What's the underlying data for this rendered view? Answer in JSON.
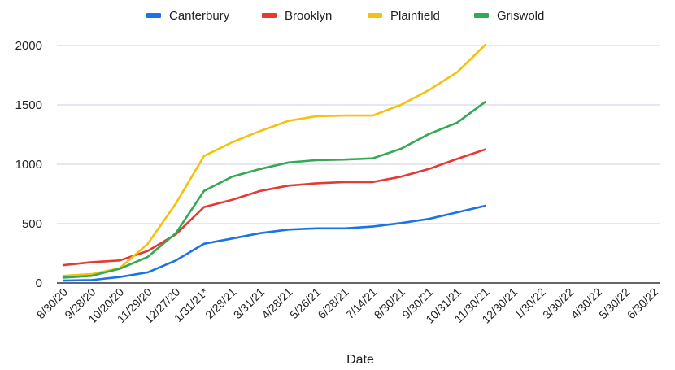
{
  "chart_data": {
    "type": "line",
    "title": "",
    "xlabel": "Date",
    "ylabel": "",
    "ylim": [
      0,
      2000
    ],
    "yticks": [
      0,
      500,
      1000,
      1500,
      2000
    ],
    "grid": true,
    "legend_position": "top",
    "categories": [
      "8/30/20",
      "9/28/20",
      "10/20/20",
      "11/29/20",
      "12/27/20",
      "1/31/21*",
      "2/28/21",
      "3/31/21",
      "4/28/21",
      "5/26/21",
      "6/28/21",
      "7/14/21",
      "8/30/21",
      "9/30/21",
      "10/31/21",
      "11/30/21",
      "12/30/21",
      "1/30/22",
      "3/30/22",
      "4/30/22",
      "5/30/22",
      "6/30/22"
    ],
    "series": [
      {
        "name": "Canterbury",
        "color": "#1a73e8",
        "values": [
          20,
          25,
          50,
          90,
          190,
          330,
          375,
          420,
          450,
          460,
          460,
          475,
          505,
          540,
          595,
          650,
          null,
          null,
          null,
          null,
          null,
          null
        ]
      },
      {
        "name": "Brooklyn",
        "color": "#e53935",
        "values": [
          150,
          175,
          190,
          270,
          410,
          640,
          700,
          775,
          820,
          840,
          850,
          850,
          895,
          960,
          1045,
          1125,
          null,
          null,
          null,
          null,
          null,
          null
        ]
      },
      {
        "name": "Plainfield",
        "color": "#f4c20d",
        "values": [
          60,
          75,
          125,
          330,
          670,
          1070,
          1185,
          1280,
          1365,
          1405,
          1410,
          1410,
          1500,
          1625,
          1775,
          2005,
          null,
          null,
          null,
          null,
          null,
          null
        ]
      },
      {
        "name": "Griswold",
        "color": "#34a853",
        "values": [
          45,
          60,
          120,
          220,
          420,
          775,
          895,
          960,
          1015,
          1035,
          1040,
          1050,
          1130,
          1255,
          1350,
          1525,
          null,
          null,
          null,
          null,
          null,
          null
        ]
      }
    ]
  }
}
